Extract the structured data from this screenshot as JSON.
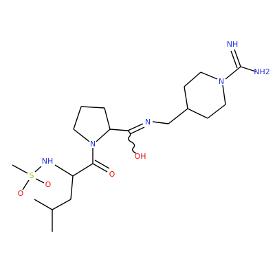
{
  "atoms": {
    "imine_nh": "NH",
    "amine": "NH2",
    "piperidine_n": "N",
    "amide_n": "N",
    "hydroxyl": "OH",
    "pyrrolidine_n": "N",
    "carbonyl_o": "O",
    "sulfonamide_nh": "NH",
    "sulfur": "S",
    "sulfonyl_o1": "O",
    "sulfonyl_o2": "O"
  }
}
